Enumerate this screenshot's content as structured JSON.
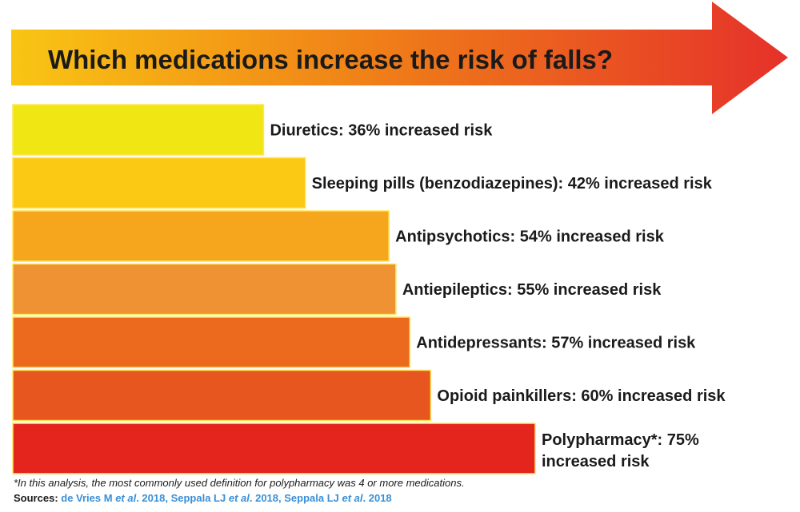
{
  "title": "Which medications increase the risk of falls?",
  "chart_data": {
    "type": "bar",
    "orientation": "horizontal",
    "categories": [
      "Diuretics",
      "Sleeping pills (benzodiazepines)",
      "Antipsychotics",
      "Antiepileptics",
      "Antidepressants",
      "Opioid painkillers",
      "Polypharmacy*"
    ],
    "values": [
      36,
      42,
      54,
      55,
      57,
      60,
      75
    ],
    "labels": [
      [
        "Diuretics: 36% increased risk"
      ],
      [
        "Sleeping pills (benzodiazepines): 42% increased risk"
      ],
      [
        "Antipsychotics: 54% increased risk"
      ],
      [
        "Antiepileptics: 55% increased risk"
      ],
      [
        "Antidepressants: 57% increased risk"
      ],
      [
        "Opioid painkillers: 60% increased risk"
      ],
      [
        "Polypharmacy*: 75%",
        "increased risk"
      ]
    ],
    "colors": [
      "#f0e614",
      "#fbc813",
      "#f6a61c",
      "#ee9233",
      "#ec6a1d",
      "#e8561f",
      "#e4251e"
    ],
    "unit": "% increased risk",
    "axes_shown": false
  },
  "footnote": "*In this analysis, the most commonly used definition for polypharmacy was 4 or more medications.",
  "sources": {
    "label": "Sources",
    "colon": ": ",
    "items": [
      {
        "author": "de Vries M ",
        "etal": "et al",
        "year": ". 2018"
      },
      {
        "author": "Seppala LJ ",
        "etal": "et al",
        "year": ". 2018"
      },
      {
        "author": "Seppala LJ ",
        "etal": "et al",
        "year": ". 2018"
      }
    ],
    "separator": ", "
  },
  "colors": {
    "arrow_start": "#f9c513",
    "arrow_mid": "#ef7a19",
    "arrow_end": "#e5312a",
    "bar_border": "#ffe55a",
    "source_link": "#3a8fd6"
  }
}
